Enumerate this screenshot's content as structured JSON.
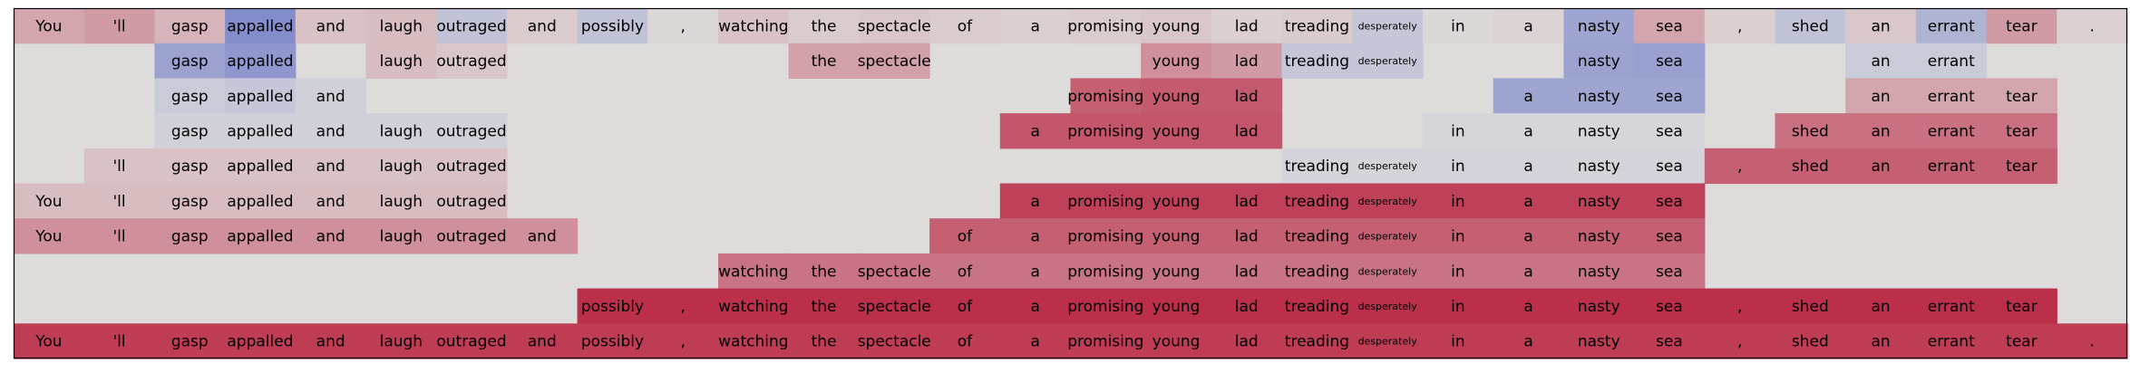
{
  "chart_data": {
    "type": "heatmap",
    "title": "",
    "tokens": [
      "You",
      "'ll",
      "gasp",
      "appalled",
      "and",
      "laugh",
      "outraged",
      "and",
      "possibly",
      ",",
      "watching",
      "the",
      "spectacle",
      "of",
      "a",
      "promising",
      "young",
      "lad",
      "treading",
      "desperately",
      "in",
      "a",
      "nasty",
      "sea",
      ",",
      "shed",
      "an",
      "errant",
      "tear",
      "."
    ],
    "empty_color": "#dddcdb",
    "colorscale": [
      "#3b4cc0",
      "#dddcdb",
      "#b40426"
    ],
    "value_range": [
      -1,
      1
    ],
    "rows": [
      [
        0.25,
        0.3,
        0.18,
        -0.55,
        0.12,
        0.15,
        -0.18,
        0.08,
        -0.18,
        0.02,
        0.12,
        0.08,
        0.1,
        0.08,
        0.06,
        0.08,
        0.1,
        0.06,
        0.08,
        -0.15,
        0.02,
        0.04,
        -0.38,
        0.25,
        0.06,
        -0.18,
        0.1,
        -0.28,
        0.3,
        0.05
      ],
      [
        null,
        null,
        -0.4,
        -0.48,
        null,
        0.15,
        0.1,
        null,
        null,
        null,
        null,
        0.28,
        0.28,
        null,
        null,
        null,
        0.35,
        0.3,
        -0.15,
        -0.15,
        null,
        null,
        -0.4,
        -0.42,
        null,
        null,
        -0.12,
        -0.12,
        null,
        null
      ],
      [
        null,
        null,
        -0.12,
        -0.15,
        -0.08,
        null,
        null,
        null,
        null,
        null,
        null,
        null,
        null,
        null,
        null,
        0.58,
        0.6,
        0.6,
        null,
        null,
        null,
        -0.38,
        -0.38,
        -0.38,
        null,
        null,
        0.25,
        0.25,
        0.25,
        null
      ],
      [
        null,
        null,
        -0.08,
        -0.08,
        -0.08,
        -0.08,
        -0.08,
        null,
        null,
        null,
        null,
        null,
        null,
        null,
        0.62,
        0.62,
        0.62,
        0.62,
        null,
        null,
        -0.05,
        -0.05,
        -0.05,
        -0.05,
        null,
        0.5,
        0.5,
        0.5,
        0.5,
        null
      ],
      [
        null,
        0.12,
        0.12,
        0.12,
        0.12,
        0.12,
        0.12,
        null,
        null,
        null,
        null,
        null,
        null,
        null,
        null,
        null,
        null,
        null,
        -0.06,
        -0.06,
        -0.06,
        -0.06,
        -0.06,
        -0.06,
        0.58,
        0.58,
        0.58,
        0.58,
        0.58,
        null
      ],
      [
        0.15,
        0.15,
        0.15,
        0.15,
        0.15,
        0.15,
        0.15,
        null,
        null,
        null,
        null,
        null,
        null,
        null,
        0.72,
        0.72,
        0.72,
        0.72,
        0.72,
        0.72,
        0.72,
        0.72,
        0.72,
        0.72,
        null,
        null,
        null,
        null,
        null,
        null
      ],
      [
        0.35,
        0.35,
        0.35,
        0.35,
        0.35,
        0.35,
        0.35,
        0.35,
        null,
        null,
        null,
        null,
        null,
        0.58,
        0.58,
        0.58,
        0.58,
        0.58,
        0.58,
        0.58,
        0.58,
        0.58,
        0.58,
        0.58,
        null,
        null,
        null,
        null,
        null,
        null
      ],
      [
        null,
        null,
        null,
        null,
        null,
        null,
        null,
        null,
        null,
        null,
        0.48,
        0.48,
        0.48,
        0.48,
        0.48,
        0.48,
        0.48,
        0.48,
        0.48,
        0.48,
        0.48,
        0.48,
        0.48,
        0.48,
        null,
        null,
        null,
        null,
        null,
        null
      ],
      [
        null,
        null,
        null,
        null,
        null,
        null,
        null,
        null,
        0.8,
        0.8,
        0.8,
        0.8,
        0.8,
        0.8,
        0.8,
        0.8,
        0.8,
        0.8,
        0.8,
        0.8,
        0.8,
        0.8,
        0.8,
        0.8,
        0.8,
        0.8,
        0.8,
        0.8,
        0.8,
        null
      ],
      [
        0.74,
        0.74,
        0.74,
        0.74,
        0.74,
        0.74,
        0.74,
        0.74,
        0.74,
        0.74,
        0.74,
        0.74,
        0.74,
        0.74,
        0.74,
        0.74,
        0.74,
        0.74,
        0.74,
        0.74,
        0.74,
        0.74,
        0.74,
        0.74,
        0.74,
        0.74,
        0.74,
        0.74,
        0.74,
        0.74
      ]
    ]
  }
}
